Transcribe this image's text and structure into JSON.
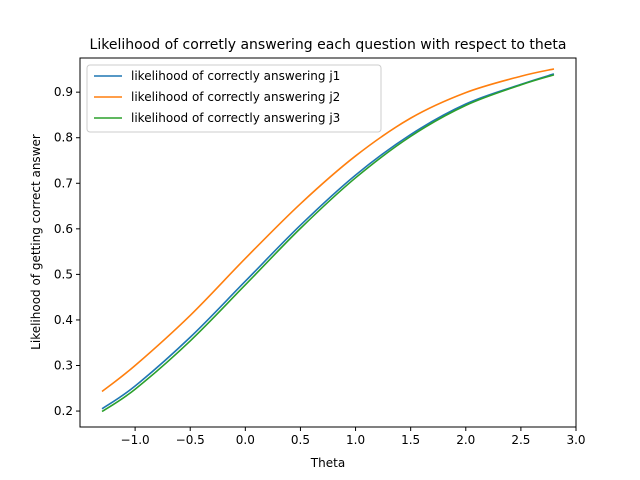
{
  "chart_data": {
    "type": "line",
    "title": "Likelihood of corretly answering each question with respect to theta",
    "xlabel": "Theta",
    "ylabel": "Likelihood of getting correct answer",
    "xlim": [
      -1.5,
      3.0
    ],
    "ylim": [
      0.165,
      0.975
    ],
    "xticks": [
      -1.0,
      -0.5,
      0.0,
      0.5,
      1.0,
      1.5,
      2.0,
      2.5,
      3.0
    ],
    "xtick_labels": [
      "−1.0",
      "−0.5",
      "0.0",
      "0.5",
      "1.0",
      "1.5",
      "2.0",
      "2.5",
      "3.0"
    ],
    "yticks": [
      0.2,
      0.3,
      0.4,
      0.5,
      0.6,
      0.7,
      0.8,
      0.9
    ],
    "ytick_labels": [
      "0.2",
      "0.3",
      "0.4",
      "0.5",
      "0.6",
      "0.7",
      "0.8",
      "0.9"
    ],
    "grid": false,
    "legend_position": "upper-left",
    "x": [
      -1.3,
      -1.0,
      -0.5,
      0.0,
      0.5,
      1.0,
      1.5,
      2.0,
      2.5,
      2.8
    ],
    "series": [
      {
        "name": "likelihood of correctly answering j1",
        "color": "#1f77b4",
        "values": [
          0.205,
          0.255,
          0.362,
          0.485,
          0.608,
          0.718,
          0.807,
          0.874,
          0.917,
          0.94
        ]
      },
      {
        "name": "likelihood of correctly answering j2",
        "color": "#ff7f0e",
        "values": [
          0.243,
          0.3,
          0.41,
          0.535,
          0.655,
          0.76,
          0.843,
          0.899,
          0.935,
          0.951
        ]
      },
      {
        "name": "likelihood of correctly answering j3",
        "color": "#2ca02c",
        "values": [
          0.199,
          0.248,
          0.354,
          0.477,
          0.601,
          0.712,
          0.803,
          0.871,
          0.916,
          0.938
        ]
      }
    ]
  }
}
